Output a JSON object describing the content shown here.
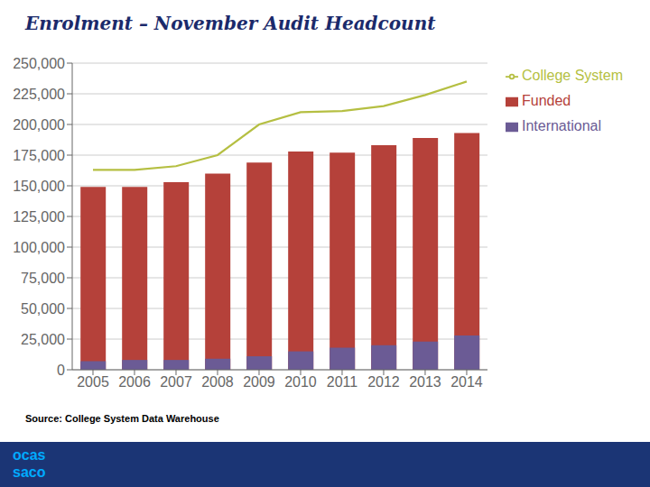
{
  "chart_data": {
    "type": "bar",
    "title": "Enrolment – November Audit Headcount",
    "categories": [
      "2005",
      "2006",
      "2007",
      "2008",
      "2009",
      "2010",
      "2011",
      "2012",
      "2013",
      "2014"
    ],
    "series": [
      {
        "name": "Funded",
        "type": "bar",
        "color": "#b5413a",
        "values": [
          149000,
          149000,
          153000,
          160000,
          169000,
          178000,
          177000,
          183000,
          189000,
          193000
        ]
      },
      {
        "name": "International",
        "type": "bar",
        "color": "#6b5b95",
        "values": [
          7000,
          8000,
          8000,
          9000,
          11000,
          15000,
          18000,
          20000,
          23000,
          28000
        ]
      },
      {
        "name": "College System",
        "type": "line",
        "color": "#b5bf42",
        "values": [
          163000,
          163000,
          166000,
          175000,
          200000,
          210000,
          211000,
          215000,
          224000,
          235000
        ]
      }
    ],
    "ylim": [
      0,
      250000
    ],
    "yticks": [
      0,
      {
        "value": 25000,
        "label": "25,000"
      },
      {
        "value": 50000,
        "label": "50,000"
      },
      {
        "value": 75000,
        "label": "75,000"
      },
      {
        "value": 100000,
        "label": "100,000"
      },
      {
        "value": 125000,
        "label": "125,000"
      },
      {
        "value": 150000,
        "label": "150,000"
      },
      {
        "value": 175000,
        "label": "175,000"
      },
      {
        "value": 200000,
        "label": "200,000"
      },
      {
        "value": 225000,
        "label": "225,000"
      },
      {
        "value": 250000,
        "label": "250,000"
      }
    ],
    "grid": true,
    "legend": "right",
    "annotations": [
      "Source: College System Data Warehouse",
      "ocas\nsaco"
    ]
  }
}
